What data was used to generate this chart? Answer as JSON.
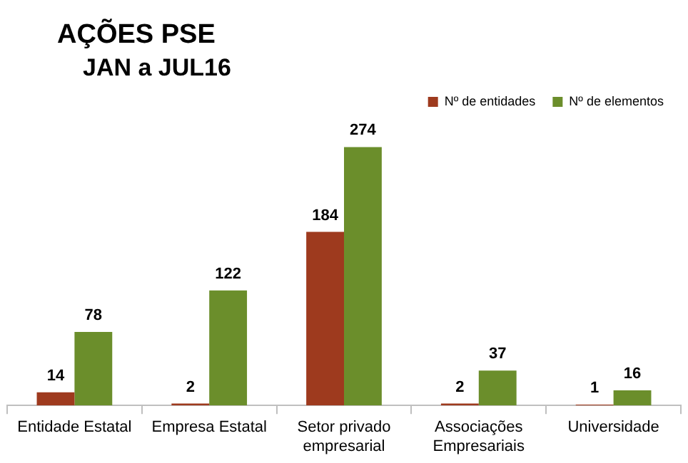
{
  "chart_data": {
    "type": "bar",
    "title": "AÇÕES PSE",
    "subtitle": "JAN a JUL16",
    "categories": [
      "Entidade Estatal",
      "Empresa Estatal",
      "Setor privado empresarial",
      "Associações Empresariais",
      "Universidade"
    ],
    "series": [
      {
        "name": "Nº de entidades",
        "color": "#9e3a1e",
        "values": [
          14,
          2,
          184,
          2,
          1
        ]
      },
      {
        "name": "Nº de elementos",
        "color": "#6b8e2b",
        "values": [
          78,
          122,
          274,
          37,
          16
        ]
      }
    ],
    "data_labels": true,
    "legend": "top right",
    "grid": false
  }
}
